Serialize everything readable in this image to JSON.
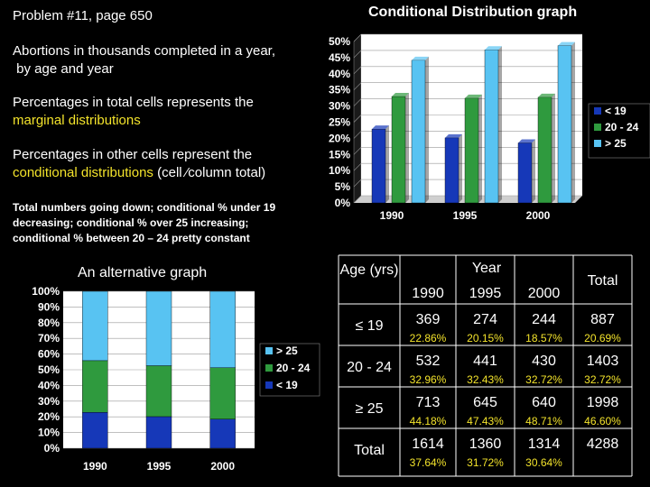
{
  "header": {
    "problem": "Problem #11, page 650",
    "chart1_title": "Conditional Distribution graph"
  },
  "text": {
    "p1_line1": "Abortions in thousands completed in a year,",
    "p1_line2": " by age and year",
    "p2_line1": "Percentages in total cells represents the",
    "p2_line2": "marginal distributions",
    "p3_line1": "Percentages in other cells represent the",
    "p3_line2": "conditional distributions",
    "p3_suffix": " (cell ⁄column total)",
    "p4_line1": "Total numbers going down; conditional % under 19",
    "p4_line2": "decreasing; conditional % over 25 increasing;",
    "p4_line3": "conditional % between 20 – 24 pretty constant",
    "alt_title": "An alternative graph"
  },
  "colors": {
    "under19": "#1638b8",
    "age20_24": "#2f9a3e",
    "over25": "#58c3f2",
    "highlight": "#f3e32b"
  },
  "chart_data": [
    {
      "type": "bar",
      "categories": [
        "1990",
        "1995",
        "2000"
      ],
      "series": [
        {
          "name": "< 19",
          "values": [
            22.86,
            20.15,
            18.57
          ]
        },
        {
          "name": "20 - 24",
          "values": [
            32.96,
            32.43,
            32.72
          ]
        },
        {
          "name": "> 25",
          "values": [
            44.18,
            47.43,
            48.71
          ]
        }
      ],
      "title": "Conditional Distribution graph",
      "ylim": [
        0,
        50
      ],
      "yticks": [
        "0%",
        "5%",
        "10%",
        "15%",
        "20%",
        "25%",
        "30%",
        "35%",
        "40%",
        "45%",
        "50%"
      ],
      "legend": "right",
      "legend_entries": [
        "< 19",
        "20 - 24",
        "> 25"
      ]
    },
    {
      "type": "bar",
      "stacked": true,
      "categories": [
        "1990",
        "1995",
        "2000"
      ],
      "series": [
        {
          "name": "< 19",
          "values": [
            22.86,
            20.15,
            18.57
          ]
        },
        {
          "name": "20 - 24",
          "values": [
            32.96,
            32.43,
            32.72
          ]
        },
        {
          "name": "> 25",
          "values": [
            44.18,
            47.43,
            48.71
          ]
        }
      ],
      "title": "An alternative graph",
      "ylim": [
        0,
        100
      ],
      "yticks": [
        "0%",
        "10%",
        "20%",
        "30%",
        "40%",
        "50%",
        "60%",
        "70%",
        "80%",
        "90%",
        "100%"
      ],
      "legend": "right",
      "legend_entries": [
        "> 25",
        "20 - 24",
        "< 19"
      ]
    },
    {
      "type": "table",
      "age_header": "Age (yrs)",
      "year_header": "Year",
      "total_header": "Total",
      "years": [
        "1990",
        "1995",
        "2000"
      ],
      "rows": [
        {
          "label": "≤ 19",
          "values": [
            "369",
            "274",
            "244"
          ],
          "total": "887",
          "pcts": [
            "22.86%",
            "20.15%",
            "18.57%"
          ],
          "total_pct": "20.69%"
        },
        {
          "label": "20 - 24",
          "values": [
            "532",
            "441",
            "430"
          ],
          "total": "1403",
          "pcts": [
            "32.96%",
            "32.43%",
            "32.72%"
          ],
          "total_pct": "32.72%"
        },
        {
          "label": "≥ 25",
          "values": [
            "713",
            "645",
            "640"
          ],
          "total": "1998",
          "pcts": [
            "44.18%",
            "47.43%",
            "48.71%"
          ],
          "total_pct": "46.60%"
        },
        {
          "label": "Total",
          "values": [
            "1614",
            "1360",
            "1314"
          ],
          "total": "4288",
          "pcts": [
            "37.64%",
            "31.72%",
            "30.64%"
          ],
          "total_pct": ""
        }
      ]
    }
  ]
}
